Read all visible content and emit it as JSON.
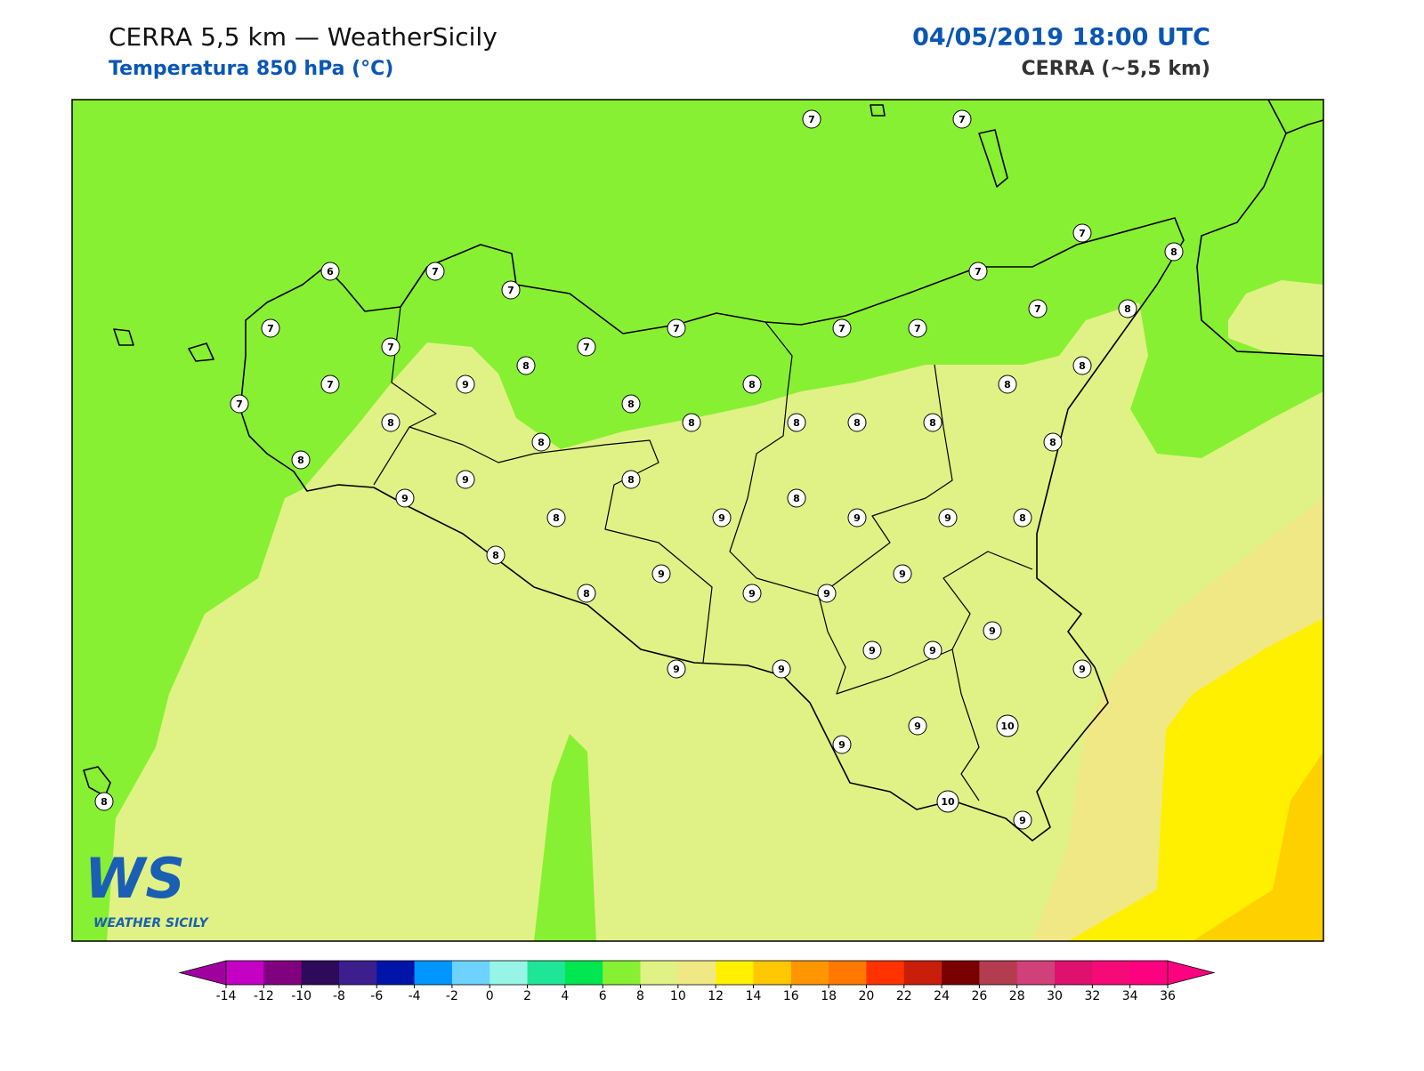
{
  "header": {
    "title": "CERRA 5,5 km — WeatherSicily",
    "subtitle": "Temperatura 850 hPa (°C)",
    "datetime": "04/05/2019 18:00 UTC",
    "model": "CERRA (~5,5 km)"
  },
  "map": {
    "labels": [
      7,
      7,
      7,
      8,
      6,
      7,
      7,
      7,
      7,
      7,
      7,
      7,
      7,
      7,
      7,
      8,
      7,
      7,
      9,
      8,
      8,
      8,
      8,
      8,
      8,
      8,
      8,
      8,
      8,
      8,
      8,
      8,
      9,
      8,
      9,
      8,
      9,
      8,
      9,
      9,
      8,
      8,
      9,
      9,
      8,
      9,
      9,
      9,
      9,
      9,
      9,
      9,
      9,
      9,
      10,
      9,
      10,
      9,
      8
    ]
  },
  "logo": {
    "text": "WS",
    "caption": "WEATHER SICILY"
  },
  "colorbar": {
    "ticks": [
      -14,
      -12,
      -10,
      -8,
      -6,
      -4,
      -2,
      0,
      2,
      4,
      6,
      8,
      10,
      12,
      14,
      16,
      18,
      20,
      22,
      24,
      26,
      28,
      30,
      32,
      34,
      36
    ],
    "colors": [
      "#c400c4",
      "#800080",
      "#2d0a5a",
      "#3c1e8c",
      "#0014aa",
      "#0096ff",
      "#6ed2ff",
      "#96f5e6",
      "#1ee696",
      "#00e650",
      "#88f032",
      "#e0f285",
      "#f0e885",
      "#fff000",
      "#ffc800",
      "#ff9600",
      "#ff7800",
      "#ff3200",
      "#c81e0a",
      "#780000",
      "#b43c50",
      "#d0407a",
      "#e0106e",
      "#f50a78",
      "#ff0080"
    ],
    "under_color": "#a000a0",
    "over_color": "#ff0080"
  }
}
